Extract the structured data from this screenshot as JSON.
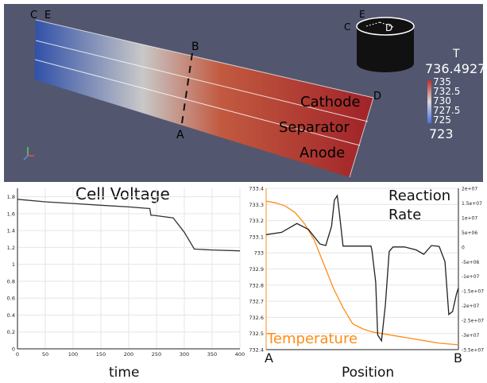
{
  "viewport": {
    "background": "#52576f",
    "slab_labels": {
      "cathode": "Cathode",
      "separator": "Separator",
      "anode": "Anode"
    },
    "points": {
      "c": "C",
      "e": "E",
      "b": "B",
      "a": "A",
      "d": "D"
    },
    "cylinder_labels": {
      "e": "E",
      "c": "C",
      "d": "D"
    },
    "colorbar": {
      "title": "T",
      "max": "736.4927",
      "ticks": [
        "735",
        "732.5",
        "730",
        "727.5",
        "725"
      ],
      "min": "723",
      "colors": {
        "low": "#4a6fe0",
        "mid": "#d9d9d9",
        "high": "#c0302b"
      }
    },
    "axes_icon": "axes-triad-icon"
  },
  "left_plot": {
    "title": "Cell Voltage",
    "xlabel": "time"
  },
  "right_plot": {
    "title_line1": "Reaction",
    "title_line2": "Rate",
    "xlabel": "Position",
    "series_label": "Temperature",
    "x_start": "A",
    "x_end": "B",
    "colors": {
      "temperature": "#ff8c1a",
      "reaction_rate": "#222222"
    }
  },
  "chart_data": [
    {
      "type": "line",
      "title": "Cell Voltage",
      "xlabel": "time",
      "ylabel": "",
      "xlim": [
        0,
        400
      ],
      "ylim": [
        0,
        1.9
      ],
      "xticks": [
        "0",
        "50",
        "100",
        "150",
        "200",
        "250",
        "300",
        "350",
        "400"
      ],
      "yticks": [
        "0",
        "0.2",
        "0.4",
        "0.6",
        "0.8",
        "1",
        "1.2",
        "1.4",
        "1.6",
        "1.8"
      ],
      "grid": true,
      "series": [
        {
          "x": [
            0,
            50,
            100,
            150,
            200,
            238,
            240,
            245,
            280,
            300,
            318,
            320,
            350,
            400
          ],
          "y": [
            1.77,
            1.74,
            1.72,
            1.7,
            1.68,
            1.66,
            1.58,
            1.58,
            1.55,
            1.38,
            1.18,
            1.18,
            1.17,
            1.16
          ]
        }
      ]
    },
    {
      "type": "line",
      "xlabel": "Position",
      "ylim_left": [
        732.4,
        733.4
      ],
      "ylim_right": [
        -35000000,
        20000000
      ],
      "xlim": [
        0,
        1
      ],
      "yticks_left": [
        "733.4",
        "733.3",
        "733.2",
        "733.1",
        "733",
        "732.9",
        "732.8",
        "732.7",
        "732.6",
        "732.5",
        "732.4"
      ],
      "yticks_right": [
        "2e+07",
        "1.5e+07",
        "1e+07",
        "5e+06",
        "0",
        "-5e+06",
        "-1e+07",
        "-1.5e+07",
        "-2e+07",
        "-2.5e+07",
        "-3e+07",
        "-3.5e+07"
      ],
      "grid": true,
      "series": [
        {
          "name": "Temperature",
          "axis": "left",
          "x": [
            0,
            0.05,
            0.1,
            0.15,
            0.2,
            0.25,
            0.3,
            0.35,
            0.4,
            0.45,
            0.5,
            0.55,
            0.6,
            0.7,
            0.8,
            0.9,
            1.0
          ],
          "y": [
            733.32,
            733.31,
            733.29,
            733.25,
            733.18,
            733.08,
            732.93,
            732.78,
            732.66,
            732.56,
            732.53,
            732.51,
            732.5,
            732.48,
            732.46,
            732.44,
            732.43
          ]
        },
        {
          "name": "Reaction Rate",
          "axis": "right",
          "x": [
            0,
            0.08,
            0.16,
            0.22,
            0.28,
            0.31,
            0.34,
            0.355,
            0.37,
            0.38,
            0.4,
            0.45,
            0.5,
            0.545,
            0.55,
            0.57,
            0.58,
            0.6,
            0.62,
            0.64,
            0.66,
            0.69,
            0.72,
            0.78,
            0.82,
            0.86,
            0.9,
            0.93,
            0.95,
            0.97,
            0.99,
            1.0
          ],
          "y": [
            4200000,
            5000000,
            8000000,
            6000000,
            1000000,
            500000,
            7000000,
            16000000,
            17500000,
            12000000,
            300000,
            300000,
            300000,
            300000,
            -1000000,
            -12000000,
            -30000000,
            -32000000,
            -20000000,
            -1500000,
            0,
            0,
            0,
            -1000000,
            -2500000,
            500000,
            200000,
            -5000000,
            -23000000,
            -22000000,
            -16000000,
            -14000000
          ]
        }
      ]
    }
  ]
}
